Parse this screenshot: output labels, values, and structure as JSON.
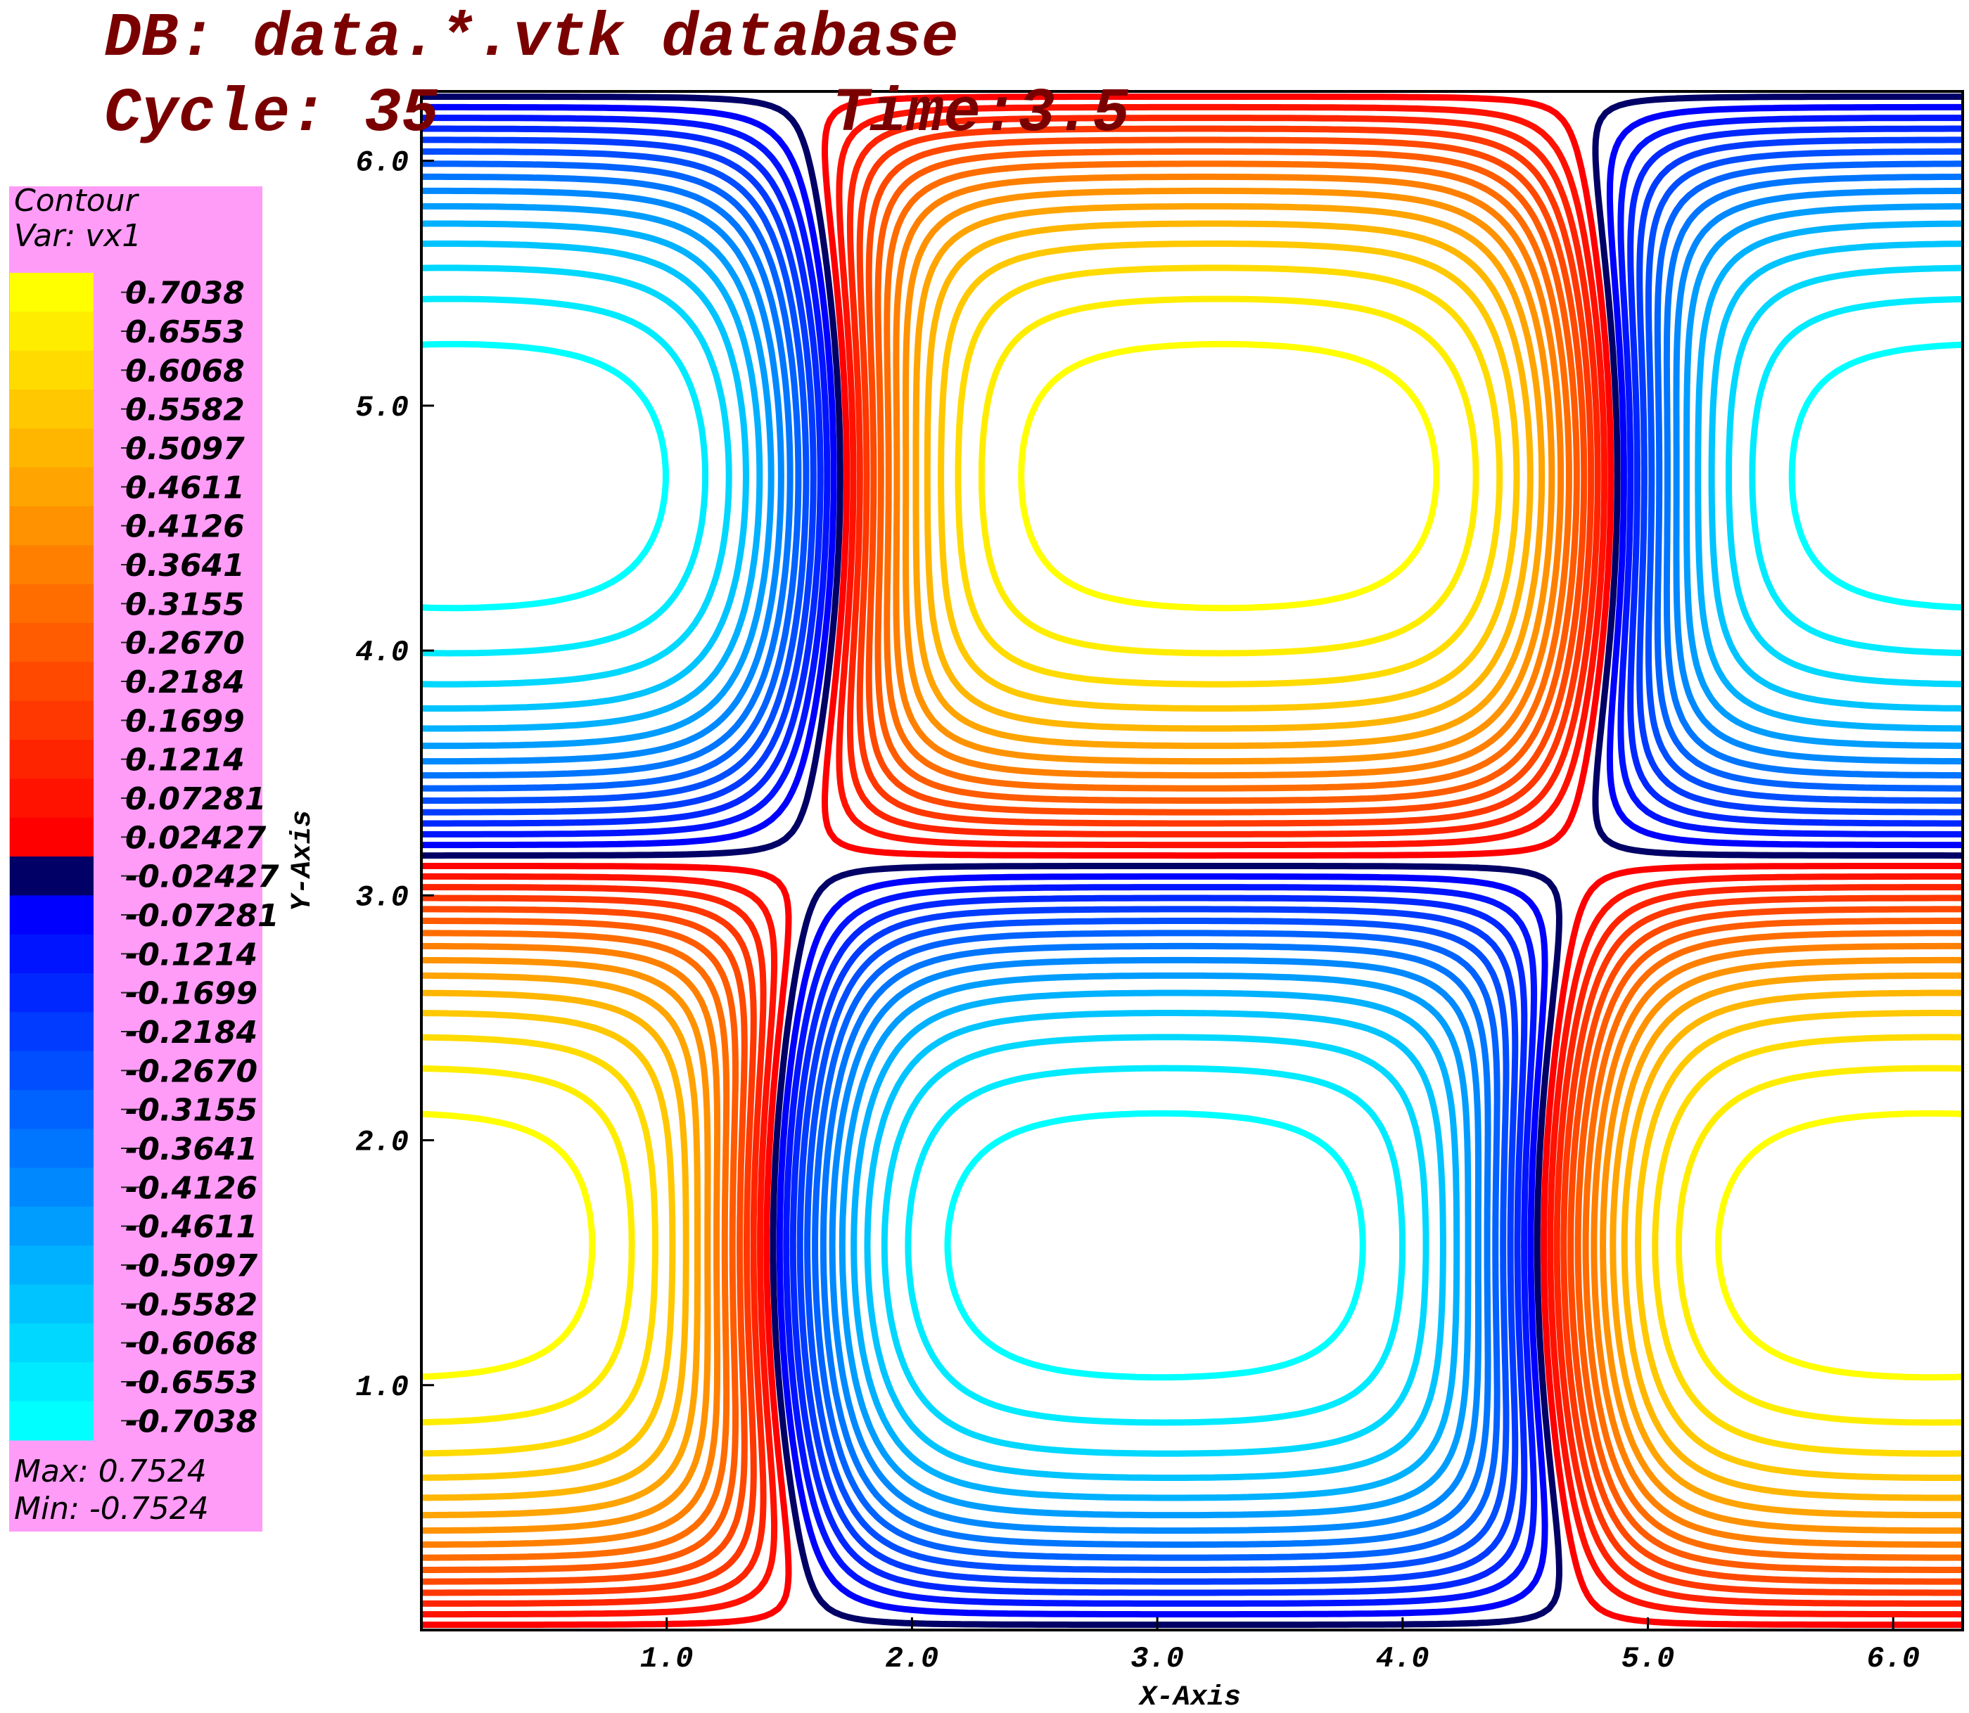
{
  "chart_data": {
    "type": "contour",
    "title": "DB: data.*.vtk database",
    "cycle": "Cycle: 35",
    "time": "Time:3.5",
    "legend_title": "Contour",
    "legend_var": "Var: vx1",
    "max": {
      "value": 0.7524,
      "label": "Max: 0.7524"
    },
    "min": {
      "value": -0.7524,
      "label": "Min: -0.7524"
    },
    "xlabel": "X-Axis",
    "ylabel": "Y-Axis",
    "xlim": [
      0,
      6.2832
    ],
    "ylim": [
      0,
      6.2832
    ],
    "xticks": [
      {
        "value": 1,
        "label": "1.0"
      },
      {
        "value": 2,
        "label": "2.0"
      },
      {
        "value": 3,
        "label": "3.0"
      },
      {
        "value": 4,
        "label": "4.0"
      },
      {
        "value": 5,
        "label": "5.0"
      },
      {
        "value": 6,
        "label": "6.0"
      }
    ],
    "yticks": [
      {
        "value": 1,
        "label": "1.0"
      },
      {
        "value": 2,
        "label": "2.0"
      },
      {
        "value": 3,
        "label": "3.0"
      },
      {
        "value": 4,
        "label": "4.0"
      },
      {
        "value": 5,
        "label": "5.0"
      },
      {
        "value": 6,
        "label": "6.0"
      }
    ],
    "levels": [
      0.7038,
      0.6553,
      0.6068,
      0.5582,
      0.5097,
      0.4611,
      0.4126,
      0.3641,
      0.3155,
      {
        "value": 0.267,
        "label": "0.2670"
      },
      0.2184,
      0.1699,
      0.1214,
      0.07281,
      0.02427,
      -0.02427,
      -0.07281,
      -0.1214,
      -0.1699,
      -0.2184,
      {
        "value": -0.267,
        "label": "-0.2670"
      },
      -0.3155,
      -0.3641,
      -0.4126,
      -0.4611,
      -0.5097,
      -0.5582,
      -0.6068,
      -0.6553,
      -0.7038
    ],
    "colors": [
      "#ffff00",
      "#ffed00",
      "#ffdb00",
      "#ffc800",
      "#ffb600",
      "#ffa400",
      "#ff9200",
      "#ff8000",
      "#ff6d00",
      "#ff5b00",
      "#ff4900",
      "#ff3700",
      "#ff2400",
      "#ff1200",
      "#ff0000",
      "#000066",
      "#0000ff",
      "#0014ff",
      "#0027ff",
      "#003bff",
      "#004eff",
      "#0062ff",
      "#0076ff",
      "#0089ff",
      "#009dff",
      "#00b1ff",
      "#00c4ff",
      "#00d8ff",
      "#00ebff",
      "#00ffff"
    ]
  }
}
